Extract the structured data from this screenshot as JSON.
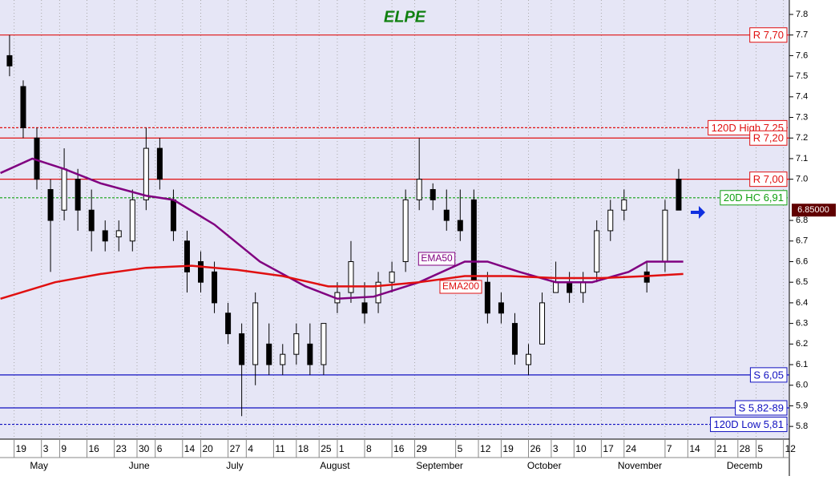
{
  "chart_data": {
    "type": "candlestick",
    "title": "ELPE",
    "xlim": [
      -2.1,
      171.3
    ],
    "ylim": [
      5.75,
      7.87
    ],
    "yticks": [
      5.8,
      5.9,
      {
        "value": 6,
        "label": "6.0"
      },
      6.1,
      6.2,
      6.3,
      6.4,
      6.5,
      6.6,
      6.7,
      6.8,
      {
        "value": 7,
        "label": "7.0"
      },
      7.1,
      7.2,
      7.3,
      7.4,
      7.5,
      7.6,
      7.7,
      7.8
    ],
    "xticks": [
      {
        "value": 1,
        "label": "19"
      },
      {
        "value": 7,
        "label": "3"
      },
      {
        "value": 11,
        "label": "9"
      },
      {
        "value": 17,
        "label": "16"
      },
      {
        "value": 23,
        "label": "23"
      },
      {
        "value": 28,
        "label": "30"
      },
      {
        "value": 32,
        "label": "6"
      },
      {
        "value": 38,
        "label": "14"
      },
      {
        "value": 42,
        "label": "20"
      },
      {
        "value": 48,
        "label": "27"
      },
      {
        "value": 52,
        "label": "4"
      },
      {
        "value": 58,
        "label": "11"
      },
      {
        "value": 63,
        "label": "18"
      },
      {
        "value": 68,
        "label": "25"
      },
      {
        "value": 72,
        "label": "1"
      },
      {
        "value": 78,
        "label": "8"
      },
      {
        "value": 84,
        "label": "16"
      },
      {
        "value": 89,
        "label": "29"
      },
      {
        "value": 98,
        "label": "5"
      },
      {
        "value": 103,
        "label": "12"
      },
      {
        "value": 108,
        "label": "19"
      },
      {
        "value": 114,
        "label": "26"
      },
      {
        "value": 119,
        "label": "3"
      },
      {
        "value": 124,
        "label": "10"
      },
      {
        "value": 130,
        "label": "17"
      },
      {
        "value": 135,
        "label": "24"
      },
      {
        "value": 144,
        "label": "7"
      },
      {
        "value": 149,
        "label": "14"
      },
      {
        "value": 155,
        "label": "21"
      },
      {
        "value": 160,
        "label": "28"
      },
      {
        "value": 164,
        "label": "5"
      },
      {
        "value": 170,
        "label": "12"
      }
    ],
    "months": [
      {
        "value": 7,
        "label": "May"
      },
      {
        "value": 29,
        "label": "June"
      },
      {
        "value": 50,
        "label": "July"
      },
      {
        "value": 72,
        "label": "August"
      },
      {
        "value": 95,
        "label": "September"
      },
      {
        "value": 118,
        "label": "October"
      },
      {
        "value": 139,
        "label": "November"
      },
      {
        "value": 162,
        "label": "Decemb"
      }
    ],
    "candles": {
      "x": [
        0,
        3,
        6,
        9,
        12,
        15,
        18,
        21,
        24,
        27,
        30,
        33,
        36,
        39,
        42,
        45,
        48,
        51,
        54,
        57,
        60,
        63,
        66,
        69,
        72,
        75,
        78,
        81,
        84,
        87,
        90,
        93,
        96,
        99,
        102,
        105,
        108,
        111,
        114,
        117,
        120,
        123,
        126,
        129,
        132,
        135,
        140,
        144,
        147
      ],
      "open": [
        7.6,
        7.45,
        7.2,
        6.95,
        6.85,
        7.0,
        6.85,
        6.75,
        6.72,
        6.7,
        6.9,
        7.15,
        6.9,
        6.7,
        6.6,
        6.55,
        6.35,
        6.25,
        6.1,
        6.2,
        6.1,
        6.15,
        6.2,
        6.1,
        6.4,
        6.45,
        6.4,
        6.4,
        6.5,
        6.6,
        6.9,
        6.95,
        6.85,
        6.8,
        6.9,
        6.5,
        6.4,
        6.3,
        6.1,
        6.2,
        6.45,
        6.5,
        6.45,
        6.55,
        6.75,
        6.85,
        6.55,
        6.6,
        7.0
      ],
      "high": [
        7.7,
        7.48,
        7.25,
        7.0,
        7.15,
        7.05,
        6.95,
        6.8,
        6.8,
        6.95,
        7.25,
        7.2,
        6.95,
        6.75,
        6.65,
        6.6,
        6.4,
        6.3,
        6.45,
        6.3,
        6.2,
        6.3,
        6.3,
        6.3,
        6.5,
        6.7,
        6.5,
        6.55,
        6.6,
        6.95,
        7.2,
        6.98,
        6.95,
        6.95,
        6.95,
        6.55,
        6.45,
        6.35,
        6.2,
        6.45,
        6.6,
        6.55,
        6.55,
        6.8,
        6.9,
        6.95,
        6.6,
        6.9,
        7.05
      ],
      "low": [
        7.5,
        7.2,
        6.95,
        6.55,
        6.8,
        6.75,
        6.65,
        6.65,
        6.65,
        6.65,
        6.85,
        6.95,
        6.7,
        6.45,
        6.45,
        6.35,
        6.2,
        5.85,
        6.0,
        6.05,
        6.05,
        6.1,
        6.05,
        6.05,
        6.35,
        6.4,
        6.3,
        6.35,
        6.45,
        6.55,
        6.85,
        6.85,
        6.75,
        6.7,
        6.45,
        6.3,
        6.3,
        6.1,
        6.05,
        6.2,
        6.45,
        6.4,
        6.4,
        6.5,
        6.7,
        6.8,
        6.45,
        6.55,
        6.85
      ],
      "close": [
        7.55,
        7.25,
        7.0,
        6.8,
        7.05,
        6.85,
        6.75,
        6.7,
        6.75,
        6.9,
        7.15,
        7.0,
        6.75,
        6.55,
        6.5,
        6.4,
        6.25,
        6.1,
        6.4,
        6.1,
        6.15,
        6.25,
        6.1,
        6.3,
        6.45,
        6.6,
        6.35,
        6.5,
        6.55,
        6.9,
        7.0,
        6.9,
        6.8,
        6.75,
        6.5,
        6.35,
        6.35,
        6.15,
        6.15,
        6.4,
        6.5,
        6.45,
        6.5,
        6.75,
        6.85,
        6.9,
        6.5,
        6.85,
        6.85
      ]
    },
    "series": [
      {
        "name": "EMA50",
        "color": "#800080",
        "x": [
          -2,
          5,
          12,
          20,
          30,
          36,
          45,
          55,
          65,
          72,
          80,
          90,
          100,
          105,
          112,
          120,
          128,
          136,
          140,
          148
        ],
        "values": [
          7.03,
          7.1,
          7.05,
          6.98,
          6.92,
          6.9,
          6.78,
          6.6,
          6.48,
          6.42,
          6.43,
          6.5,
          6.6,
          6.6,
          6.55,
          6.5,
          6.5,
          6.55,
          6.6,
          6.6
        ]
      },
      {
        "name": "EMA200",
        "color": "#e01010",
        "x": [
          -2,
          10,
          20,
          30,
          40,
          50,
          60,
          70,
          80,
          90,
          100,
          110,
          120,
          130,
          140,
          148
        ],
        "values": [
          6.42,
          6.5,
          6.54,
          6.57,
          6.58,
          6.56,
          6.53,
          6.48,
          6.48,
          6.5,
          6.53,
          6.53,
          6.52,
          6.52,
          6.53,
          6.54
        ]
      }
    ],
    "levels": [
      {
        "label": "R 7,70",
        "value": 7.7,
        "color": "#e01010",
        "dashed": false
      },
      {
        "label": "120D High 7,25",
        "value": 7.25,
        "color": "#e01010",
        "dashed": true
      },
      {
        "label": "R 7,20",
        "value": 7.2,
        "color": "#e01010",
        "dashed": false
      },
      {
        "label": "R 7,00",
        "value": 7.0,
        "color": "#e01010",
        "dashed": false
      },
      {
        "label": "20D HC 6,91",
        "value": 6.91,
        "color": "#10a010",
        "dashed": true
      },
      {
        "label": "S 6,05",
        "value": 6.05,
        "color": "#1010c0",
        "dashed": false
      },
      {
        "label": "S 5,82-89",
        "value": 5.89,
        "color": "#1010c0",
        "dashed": false
      },
      {
        "label": "120D Low 5,81",
        "value": 5.81,
        "color": "#1010c0",
        "dashed": true
      }
    ],
    "last": {
      "value": 6.85,
      "label": "6.85000"
    }
  }
}
